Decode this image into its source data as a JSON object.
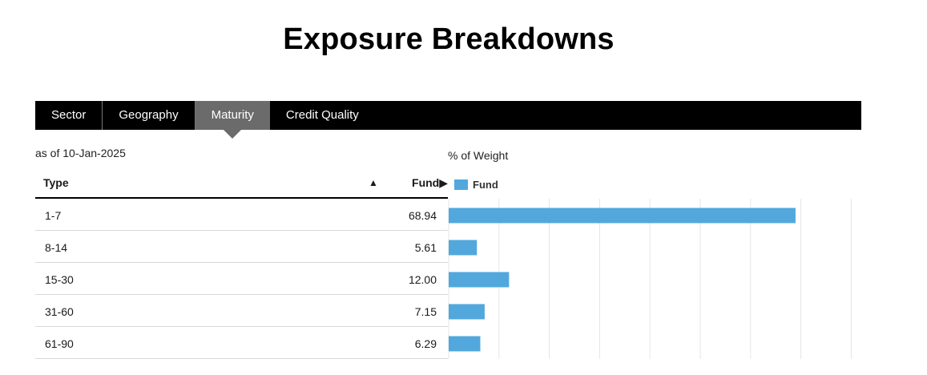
{
  "header": {
    "title": "Exposure Breakdowns"
  },
  "tabs": [
    {
      "label": "Sector",
      "active": false
    },
    {
      "label": "Geography",
      "active": false
    },
    {
      "label": "Maturity",
      "active": true
    },
    {
      "label": "Credit Quality",
      "active": false
    }
  ],
  "as_of": "as of 10-Jan-2025",
  "table": {
    "col_type": "Type",
    "col_fund": "Fund▶",
    "sort_icon": "▲",
    "rows": [
      {
        "type": "1-7",
        "value": "68.94"
      },
      {
        "type": "8-14",
        "value": "5.61"
      },
      {
        "type": "15-30",
        "value": "12.00"
      },
      {
        "type": "31-60",
        "value": "7.15"
      },
      {
        "type": "61-90",
        "value": "6.29"
      }
    ]
  },
  "colors": {
    "bar": "#52a8dc",
    "tabbar": "#000000",
    "active_tab": "#6b6b6b",
    "grid": "#e6e6e6"
  },
  "chart_data": {
    "type": "bar",
    "orientation": "horizontal",
    "title": "% of Weight",
    "categories": [
      "1-7",
      "8-14",
      "15-30",
      "31-60",
      "61-90"
    ],
    "series": [
      {
        "name": "Fund",
        "values": [
          68.94,
          5.61,
          12.0,
          7.15,
          6.29
        ]
      }
    ],
    "xlim": [
      0,
      80
    ],
    "grid": true,
    "legend": "top-left"
  }
}
